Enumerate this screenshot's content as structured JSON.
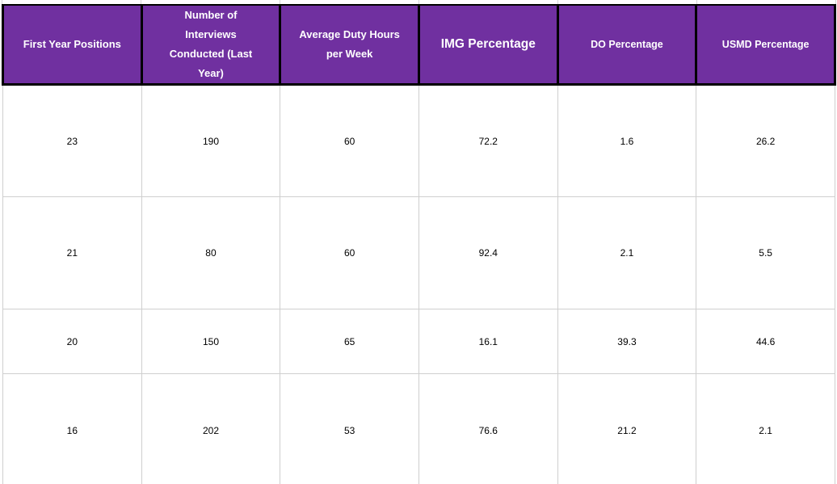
{
  "chart_data": {
    "type": "table",
    "columns": [
      "First Year Positions",
      "Number of\nInterviews\nConducted (Last\nYear)",
      "Average Duty Hours\nper Week",
      "IMG Percentage",
      "DO Percentage",
      "USMD Percentage"
    ],
    "rows": [
      [
        "23",
        "190",
        "60",
        "72.2",
        "1.6",
        "26.2"
      ],
      [
        "21",
        "80",
        "60",
        "92.4",
        "2.1",
        "5.5"
      ],
      [
        "20",
        "150",
        "65",
        "16.1",
        "39.3",
        "44.6"
      ],
      [
        "16",
        "202",
        "53",
        "76.6",
        "21.2",
        "2.1"
      ]
    ]
  },
  "colors": {
    "header_bg": "#7030a0",
    "header_text": "#ffffff",
    "header_border": "#000000",
    "gridline": "#cfcfcf",
    "body_text": "#000000"
  }
}
